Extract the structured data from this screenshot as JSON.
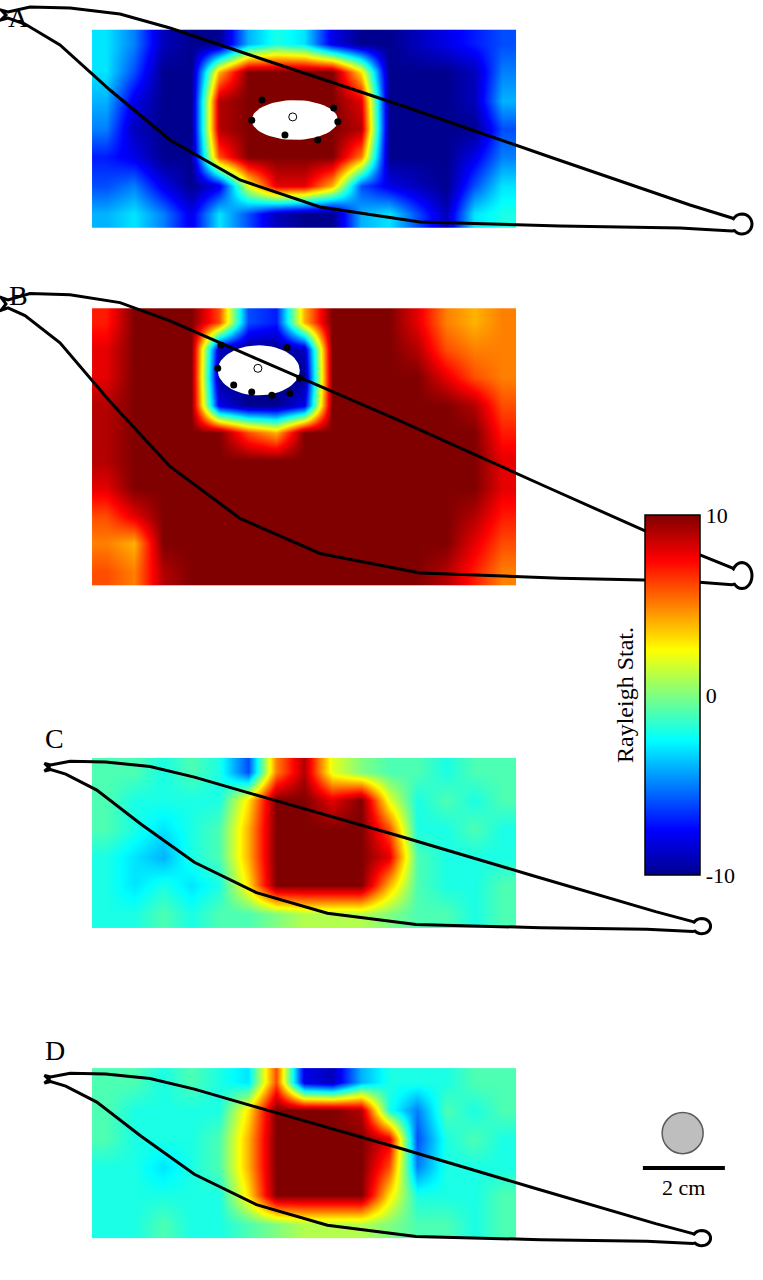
{
  "chart_data": [
    {
      "type": "heatmap",
      "label": "A",
      "tick_labels": false,
      "xlim": [
        -2.24,
        16.37
      ],
      "ylim": [
        -1.51,
        5.56
      ],
      "x": [
        0.35,
        1.04,
        1.73,
        2.42,
        3.11,
        3.8,
        4.49,
        5.18,
        5.87,
        6.56,
        7.25,
        7.94,
        8.63,
        9.32,
        10.01
      ],
      "y": [
        0.35,
        1.04,
        1.73,
        2.42,
        3.11,
        3.8,
        4.49
      ],
      "z": [
        [
          -4,
          -3,
          -5,
          -8,
          -3,
          -6,
          -9,
          -10,
          -10,
          -4,
          -3,
          -6,
          -9,
          -3,
          -2
        ],
        [
          -6,
          -5,
          -8,
          -10,
          -8,
          2,
          8,
          8,
          4,
          -6,
          -8,
          -9,
          -10,
          -6,
          -3
        ],
        [
          -7,
          -8,
          -10,
          -10,
          6,
          10,
          10,
          10,
          10,
          5,
          -10,
          -10,
          -10,
          -8,
          -5
        ],
        [
          -5,
          -9,
          -10,
          -10,
          9,
          10,
          10,
          10,
          10,
          9,
          -10,
          -10,
          -10,
          -10,
          -6
        ],
        [
          -4,
          -8,
          -10,
          -10,
          9,
          10,
          10,
          10,
          10,
          8,
          -10,
          -10,
          -10,
          -9,
          -4
        ],
        [
          -3,
          -6,
          -10,
          -10,
          4,
          10,
          10,
          10,
          10,
          3,
          -10,
          -10,
          -10,
          -9,
          -5
        ],
        [
          -3,
          -5,
          -9,
          -10,
          -10,
          -4,
          -2,
          -3,
          -8,
          -10,
          -10,
          -9,
          -8,
          -7,
          -6
        ]
      ],
      "electrodes": {
        "x": [
          3.9,
          4.15,
          4.71,
          5.51,
          5.9,
          6.0
        ],
        "y": [
          2.63,
          3.12,
          2.27,
          2.15,
          2.93,
          2.59
        ]
      },
      "center": {
        "x": 4.9,
        "y": 2.71
      }
    },
    {
      "type": "heatmap",
      "label": "B",
      "tick_labels": false,
      "xlim": [
        -2.24,
        16.37
      ],
      "ylim": [
        -1.34,
        7.2
      ],
      "x": [
        0.35,
        1.04,
        1.73,
        2.42,
        3.11,
        3.8,
        4.49,
        5.18,
        5.87,
        6.56,
        7.25,
        7.94,
        8.63,
        9.32,
        10.01
      ],
      "y": [
        0.34,
        1.01,
        1.69,
        2.37,
        3.04,
        3.72,
        4.39,
        5.07,
        5.75,
        6.42
      ],
      "z": [
        [
          6,
          5,
          9,
          10,
          10,
          10,
          10,
          10,
          10,
          10,
          10,
          10,
          9,
          7,
          5
        ],
        [
          5,
          4,
          10,
          10,
          10,
          10,
          10,
          10,
          10,
          10,
          10,
          10,
          10,
          8,
          6
        ],
        [
          6,
          8,
          10,
          10,
          10,
          10,
          10,
          10,
          10,
          10,
          10,
          10,
          10,
          9,
          7
        ],
        [
          8,
          10,
          10,
          10,
          10,
          10,
          10,
          10,
          10,
          10,
          10,
          10,
          10,
          10,
          8
        ],
        [
          9,
          10,
          10,
          10,
          10,
          10,
          10,
          10,
          10,
          10,
          10,
          10,
          10,
          10,
          8
        ],
        [
          9,
          10,
          10,
          10,
          10,
          6,
          4,
          10,
          10,
          10,
          10,
          10,
          10,
          10,
          7
        ],
        [
          9,
          10,
          10,
          10,
          -8,
          -10,
          -10,
          -8,
          10,
          10,
          10,
          10,
          10,
          9,
          6
        ],
        [
          8,
          10,
          10,
          10,
          -10,
          -10,
          -10,
          -10,
          10,
          10,
          10,
          10,
          8,
          6,
          5
        ],
        [
          8,
          10,
          10,
          10,
          -9,
          -10,
          -10,
          -9,
          10,
          10,
          10,
          9,
          6,
          5,
          5
        ],
        [
          7,
          10,
          10,
          10,
          6,
          -6,
          -7,
          4,
          10,
          10,
          10,
          8,
          5,
          4,
          5
        ]
      ],
      "electrodes": {
        "x": [
          3.15,
          3.07,
          3.46,
          3.9,
          4.39,
          4.83,
          5.07,
          4.76
        ],
        "y": [
          5.85,
          5.29,
          4.88,
          4.71,
          4.63,
          4.68,
          5.05,
          5.8
        ]
      },
      "center": {
        "x": 4.05,
        "y": 5.29
      }
    },
    {
      "type": "heatmap",
      "label": "C",
      "tick_labels": false,
      "xlim": [
        -2.24,
        16.37
      ],
      "ylim": [
        -0.78,
        7.02
      ],
      "x": [
        0.35,
        1.04,
        1.73,
        2.42,
        3.11,
        3.8,
        4.49,
        5.18,
        5.87,
        6.56,
        7.25,
        7.94,
        8.63,
        9.32,
        10.01
      ],
      "y": [
        0.35,
        1.04,
        1.73,
        2.42,
        3.11,
        3.8
      ],
      "z": [
        [
          -2,
          -2,
          -1,
          -2,
          -1,
          -1,
          0,
          1,
          1,
          1,
          0,
          -1,
          -1,
          -2,
          -1
        ],
        [
          -2,
          -3,
          -2,
          -3,
          -2,
          3,
          10,
          10,
          10,
          10,
          4,
          -1,
          -2,
          -2,
          -1
        ],
        [
          -2,
          -3,
          -4,
          -2,
          -1,
          4,
          10,
          10,
          10,
          10,
          8,
          -1,
          -2,
          -2,
          -2
        ],
        [
          -1,
          -2,
          -3,
          -2,
          -1,
          4,
          10,
          10,
          10,
          10,
          6,
          -2,
          -2,
          -1,
          -2
        ],
        [
          -1,
          -2,
          -2,
          -2,
          -2,
          3,
          10,
          10,
          8,
          10,
          2,
          -2,
          -1,
          -2,
          -1
        ],
        [
          -1,
          -1,
          -2,
          -1,
          -2,
          -6,
          5,
          9,
          2,
          0,
          -1,
          -1,
          -2,
          -1,
          -1
        ]
      ]
    },
    {
      "type": "heatmap",
      "label": "D",
      "tick_labels": false,
      "xlim": [
        -2.24,
        16.37
      ],
      "ylim": [
        -1.02,
        6.78
      ],
      "x": [
        0.35,
        1.04,
        1.73,
        2.42,
        3.11,
        3.8,
        4.49,
        5.18,
        5.87,
        6.56,
        7.25,
        7.94,
        8.63,
        9.32,
        10.01
      ],
      "y": [
        0.35,
        1.04,
        1.73,
        2.42,
        3.11,
        3.8
      ],
      "z": [
        [
          -2,
          -2,
          -1,
          -2,
          -2,
          -1,
          0,
          1,
          1,
          1,
          0,
          -1,
          -1,
          -2,
          -1
        ],
        [
          -2,
          -2,
          -2,
          -2,
          -2,
          3,
          10,
          10,
          10,
          10,
          3,
          -2,
          -2,
          -2,
          -1
        ],
        [
          -2,
          -2,
          -3,
          -2,
          -1,
          4,
          10,
          10,
          10,
          10,
          6,
          -5,
          -2,
          -2,
          -2
        ],
        [
          -1,
          -2,
          -2,
          -2,
          -1,
          4,
          10,
          10,
          10,
          10,
          8,
          -6,
          -2,
          -1,
          -2
        ],
        [
          -1,
          -2,
          -2,
          -2,
          -2,
          3,
          10,
          10,
          10,
          9,
          -2,
          -5,
          -1,
          -2,
          -1
        ],
        [
          -1,
          -1,
          -2,
          -1,
          -2,
          -3,
          6,
          -8,
          -9,
          -4,
          -2,
          -2,
          -2,
          -1,
          -1
        ]
      ]
    }
  ],
  "colorbar": {
    "title": "Rayleigh Stat.",
    "range": [
      -10,
      10
    ],
    "ticks": [
      -10,
      0,
      10
    ]
  },
  "scale_bar": {
    "label": "2 cm",
    "length": 2
  }
}
